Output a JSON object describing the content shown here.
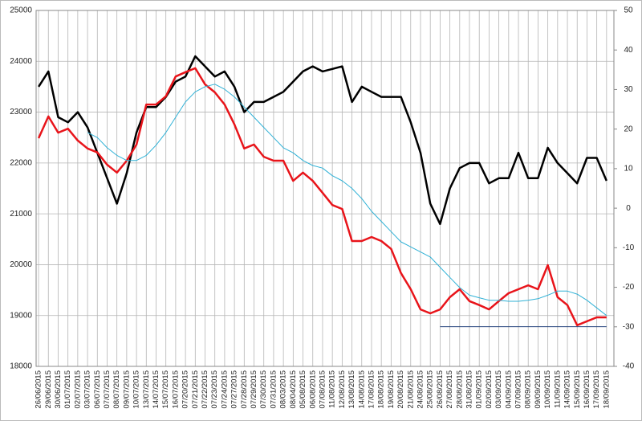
{
  "chart_data": {
    "type": "line",
    "categories": [
      "26/06/2015",
      "29/06/2015",
      "30/06/2015",
      "01/07/2015",
      "02/07/2015",
      "03/07/2015",
      "06/07/2015",
      "07/07/2015",
      "08/07/2015",
      "09/07/2015",
      "10/07/2015",
      "13/07/2015",
      "14/07/2015",
      "15/07/2015",
      "16/07/2015",
      "07/20/2015",
      "07/21/2015",
      "07/22/2015",
      "07/23/2015",
      "07/24/2015",
      "07/27/2015",
      "07/28/2015",
      "07/29/2015",
      "07/30/2015",
      "07/31/2015",
      "08/03/2015",
      "08/04/2015",
      "05/08/2015",
      "06/08/2015",
      "07/08/2015",
      "11/08/2015",
      "12/08/2015",
      "13/08/2015",
      "14/08/2015",
      "17/08/2015",
      "18/08/2015",
      "19/08/2015",
      "20/08/2015",
      "21/08/2015",
      "24/08/2015",
      "25/08/2015",
      "26/08/2015",
      "27/08/2015",
      "28/08/2015",
      "31/08/2015",
      "01/09/2015",
      "02/09/2015",
      "03/09/2015",
      "04/09/2015",
      "07/09/2015",
      "08/09/2015",
      "09/09/2015",
      "10/09/2015",
      "11/09/2015",
      "14/09/2015",
      "15/09/2015",
      "16/09/2015",
      "17/09/2015",
      "18/09/2015"
    ],
    "series": [
      {
        "color": "#000000",
        "width": 2.5,
        "values": [
          23500,
          23800,
          22900,
          22800,
          23000,
          22700,
          22200,
          21700,
          21200,
          21800,
          22600,
          23100,
          23100,
          23300,
          23600,
          23700,
          24100,
          23900,
          23700,
          23800,
          23500,
          23000,
          23200,
          23200,
          23300,
          23400,
          23600,
          23800,
          23900,
          23800,
          23850,
          23900,
          23200,
          23500,
          23400,
          23300,
          23300,
          23300,
          22800,
          22200,
          21200,
          20800,
          21500,
          21900,
          22000,
          22000,
          21600,
          21700,
          21700,
          22200,
          21700,
          21700,
          22300,
          22000,
          21800,
          21600,
          22100,
          22100,
          21650
        ]
      },
      {
        "color": "#e8141a",
        "width": 2.5,
        "axis": "y2",
        "values": [
          17.7,
          23.2,
          19.1,
          20.1,
          17.1,
          15.1,
          14.1,
          11,
          9,
          12,
          16.1,
          26.2,
          26.2,
          28.3,
          33.3,
          34.4,
          35.4,
          31.3,
          29.3,
          26.2,
          21.2,
          15.1,
          16.1,
          13,
          12,
          12,
          6.9,
          9,
          6.9,
          3.9,
          0.8,
          -0.2,
          -8.3,
          -8.3,
          -7.3,
          -8.3,
          -10.3,
          -16.4,
          -20.5,
          -25.6,
          -26.6,
          -25.6,
          -22.5,
          -20.5,
          -23.5,
          -24.5,
          -25.6,
          -23.5,
          -21.5,
          -20.5,
          -19.5,
          -20.5,
          -14.4,
          -22.5,
          -24.5,
          -29.6,
          -28.6,
          -27.6,
          -27.6
        ]
      },
      {
        "color": "#2fb1d6",
        "width": 1,
        "values": [
          null,
          null,
          null,
          null,
          null,
          22600,
          22500,
          22300,
          22150,
          22050,
          22050,
          22150,
          22350,
          22600,
          22900,
          23200,
          23400,
          23500,
          23550,
          23450,
          23300,
          23100,
          22900,
          22700,
          22500,
          22300,
          22200,
          22050,
          21950,
          21900,
          21750,
          21650,
          21500,
          21300,
          21050,
          20850,
          20650,
          20450,
          20350,
          20250,
          20150,
          19950,
          19750,
          19550,
          19400,
          19350,
          19300,
          19300,
          19280,
          19280,
          19300,
          19330,
          19400,
          19480,
          19480,
          19420,
          19300,
          19150,
          19000
        ]
      },
      {
        "color": "#1f3f7a",
        "width": 1,
        "values": [
          null,
          null,
          null,
          null,
          null,
          null,
          null,
          null,
          null,
          null,
          null,
          null,
          null,
          null,
          null,
          null,
          null,
          null,
          null,
          null,
          null,
          null,
          null,
          null,
          null,
          null,
          null,
          null,
          null,
          null,
          null,
          null,
          null,
          null,
          null,
          null,
          null,
          null,
          null,
          null,
          null,
          18780,
          18780,
          18780,
          18780,
          18780,
          18780,
          18780,
          18780,
          18780,
          18780,
          18780,
          18780,
          18780,
          18780,
          18780,
          18780,
          18780,
          18780
        ]
      }
    ],
    "ylim": [
      18000,
      25000
    ],
    "yticks": [
      18000,
      19000,
      20000,
      21000,
      22000,
      23000,
      24000,
      25000
    ],
    "y2lim": [
      -40,
      50
    ],
    "y2ticks": [
      -40,
      -30,
      -20,
      -10,
      0,
      10,
      20,
      30,
      40,
      50
    ],
    "grid": true
  }
}
